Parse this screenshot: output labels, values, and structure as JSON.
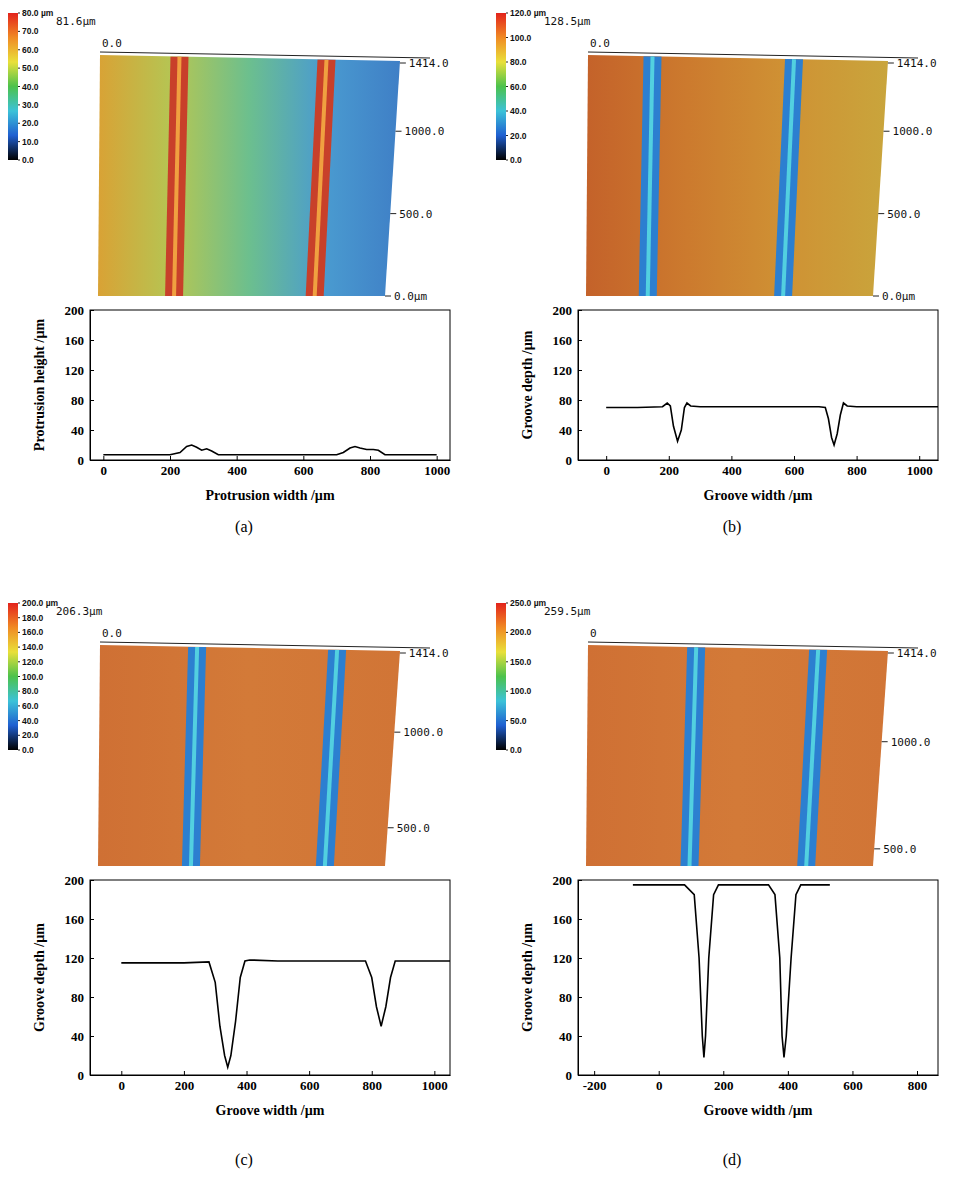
{
  "chart_data": [
    {
      "type": "line",
      "title": "(a)",
      "xlabel": "Protrusion width /µm",
      "ylabel": "Protrusion height /µm",
      "xlim": [
        -40,
        1040
      ],
      "ylim": [
        0,
        200
      ],
      "xticks": [
        0,
        200,
        400,
        600,
        800,
        1000
      ],
      "yticks": [
        0,
        40,
        80,
        120,
        160,
        200
      ],
      "color": "#000000",
      "x": [
        0,
        50,
        100,
        150,
        200,
        230,
        250,
        265,
        280,
        295,
        310,
        325,
        345,
        400,
        500,
        600,
        650,
        700,
        720,
        740,
        755,
        770,
        790,
        810,
        825,
        845,
        900,
        950,
        1000
      ],
      "values": [
        7,
        7,
        7,
        7,
        7,
        10,
        18,
        20,
        17,
        13,
        15,
        12,
        7,
        7,
        7,
        7,
        7,
        7,
        10,
        16,
        18,
        16,
        14,
        14,
        13,
        7,
        7,
        7,
        7
      ],
      "surface": {
        "max_label": "81.6µm",
        "origin_label": "0.0",
        "ylim": [
          0,
          1414
        ],
        "yticks": [
          {
            "value": 1414,
            "label": "1414.0"
          },
          {
            "value": 1000,
            "label": "1000.0"
          },
          {
            "value": 500,
            "label": "500.0"
          },
          {
            "value": 0,
            "label": "0.0µm"
          }
        ],
        "colorbar": {
          "range": [
            0,
            80
          ],
          "ticks": [
            {
              "value": 80,
              "label": "80.0 µm"
            },
            {
              "value": 70,
              "label": "70.0"
            },
            {
              "value": 60,
              "label": "60.0"
            },
            {
              "value": 50,
              "label": "50.0"
            },
            {
              "value": 40,
              "label": "40.0"
            },
            {
              "value": 30,
              "label": "30.0"
            },
            {
              "value": 20,
              "label": "20.0"
            },
            {
              "value": 10,
              "label": "10.0"
            },
            {
              "value": 0,
              "label": "0.0"
            }
          ]
        }
      }
    },
    {
      "type": "line",
      "title": "(b)",
      "xlabel": "Groove width /µm",
      "ylabel": "Groove depth /µm",
      "xlim": [
        -90,
        1060
      ],
      "ylim": [
        0,
        200
      ],
      "xticks": [
        0,
        200,
        400,
        600,
        800,
        1000
      ],
      "yticks": [
        0,
        40,
        80,
        120,
        160,
        200
      ],
      "color": "#000000",
      "x": [
        0,
        100,
        180,
        195,
        205,
        215,
        228,
        240,
        250,
        258,
        270,
        300,
        400,
        500,
        600,
        680,
        700,
        710,
        720,
        728,
        738,
        748,
        758,
        770,
        800,
        900,
        1000,
        1060
      ],
      "values": [
        70,
        70,
        71,
        76,
        72,
        45,
        25,
        40,
        70,
        76,
        72,
        71,
        71,
        71,
        71,
        71,
        70,
        55,
        30,
        20,
        35,
        60,
        76,
        72,
        71,
        71,
        71,
        71
      ],
      "surface": {
        "max_label": "128.5µm",
        "origin_label": "0.0",
        "ylim": [
          0,
          1414
        ],
        "yticks": [
          {
            "value": 1414,
            "label": "1414.0"
          },
          {
            "value": 1000,
            "label": "1000.0"
          },
          {
            "value": 500,
            "label": "500.0"
          },
          {
            "value": 0,
            "label": "0.0µm"
          }
        ],
        "colorbar": {
          "range": [
            0,
            120
          ],
          "ticks": [
            {
              "value": 120,
              "label": "120.0 µm"
            },
            {
              "value": 100,
              "label": "100.0"
            },
            {
              "value": 80,
              "label": "80.0"
            },
            {
              "value": 60,
              "label": "60.0"
            },
            {
              "value": 40,
              "label": "40.0"
            },
            {
              "value": 20,
              "label": "20.0"
            },
            {
              "value": 0,
              "label": "0.0"
            }
          ]
        }
      }
    },
    {
      "type": "line",
      "title": "(c)",
      "xlabel": "Groove width /µm",
      "ylabel": "Groove depth /µm",
      "xlim": [
        -100,
        1050
      ],
      "ylim": [
        0,
        200
      ],
      "xticks": [
        0,
        200,
        400,
        600,
        800,
        1000
      ],
      "yticks": [
        0,
        40,
        80,
        120,
        160,
        200
      ],
      "color": "#000000",
      "x": [
        0,
        100,
        200,
        280,
        300,
        315,
        330,
        340,
        350,
        365,
        380,
        395,
        410,
        500,
        600,
        700,
        780,
        800,
        815,
        830,
        845,
        860,
        875,
        900,
        1000,
        1050
      ],
      "values": [
        115,
        115,
        115,
        116,
        95,
        50,
        20,
        8,
        20,
        55,
        100,
        117,
        118,
        117,
        117,
        117,
        117,
        100,
        70,
        50,
        70,
        100,
        117,
        117,
        117,
        117
      ],
      "surface": {
        "max_label": "206.3µm",
        "origin_label": "0.0",
        "ylim": [
          300,
          1414
        ],
        "yticks": [
          {
            "value": 1414,
            "label": "1414.0"
          },
          {
            "value": 1000,
            "label": "1000.0"
          },
          {
            "value": 500,
            "label": "500.0"
          }
        ],
        "colorbar": {
          "range": [
            0,
            200
          ],
          "ticks": [
            {
              "value": 200,
              "label": "200.0 µm"
            },
            {
              "value": 180,
              "label": "180.0"
            },
            {
              "value": 160,
              "label": "160.0"
            },
            {
              "value": 140,
              "label": "140.0"
            },
            {
              "value": 120,
              "label": "120.0"
            },
            {
              "value": 100,
              "label": "100.0"
            },
            {
              "value": 80,
              "label": "80.0"
            },
            {
              "value": 60,
              "label": "60.0"
            },
            {
              "value": 40,
              "label": "40.0"
            },
            {
              "value": 20,
              "label": "20.0"
            },
            {
              "value": 0,
              "label": "0.0"
            }
          ]
        }
      }
    },
    {
      "type": "line",
      "title": "(d)",
      "xlabel": "Groove width /µm",
      "ylabel": "Groove depth /µm",
      "xlim": [
        -250,
        865
      ],
      "ylim": [
        0,
        200
      ],
      "xticks": [
        -200,
        0,
        200,
        400,
        600,
        800
      ],
      "yticks": [
        0,
        40,
        80,
        120,
        160,
        200
      ],
      "color": "#000000",
      "x": [
        -80,
        0,
        80,
        110,
        125,
        135,
        140,
        145,
        155,
        170,
        185,
        200,
        300,
        340,
        360,
        375,
        382,
        388,
        395,
        410,
        425,
        440,
        530
      ],
      "values": [
        195,
        195,
        195,
        185,
        120,
        40,
        18,
        40,
        120,
        185,
        195,
        195,
        195,
        195,
        185,
        120,
        40,
        18,
        40,
        120,
        185,
        195,
        195
      ],
      "surface": {
        "max_label": "259.5µm",
        "origin_label": "0",
        "ylim": [
          420,
          1414
        ],
        "yticks": [
          {
            "value": 1414,
            "label": "1414.0"
          },
          {
            "value": 1000,
            "label": "1000.0"
          },
          {
            "value": 500,
            "label": "500.0"
          }
        ],
        "colorbar": {
          "range": [
            0,
            250
          ],
          "ticks": [
            {
              "value": 250,
              "label": "250.0 µm"
            },
            {
              "value": 200,
              "label": "200.0"
            },
            {
              "value": 150,
              "label": "150.0"
            },
            {
              "value": 100,
              "label": "100.0"
            },
            {
              "value": 50,
              "label": "50.0"
            },
            {
              "value": 0,
              "label": "0.0"
            }
          ]
        }
      }
    }
  ]
}
